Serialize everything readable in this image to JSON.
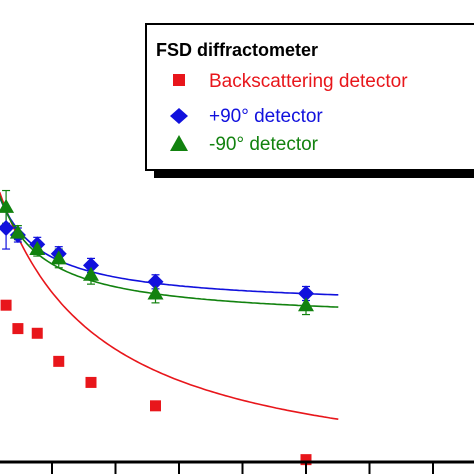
{
  "chart_data": {
    "type": "scatter",
    "legend": {
      "title": "FSD diffractometer",
      "placement": "top-right"
    },
    "x_range": [
      0,
      31
    ],
    "y_range": [
      0,
      19
    ],
    "series": [
      {
        "name": "Backscattering detector",
        "color": "#e8161b",
        "marker": "square",
        "points": [
          [
            0.1,
            12.0
          ],
          [
            1.2,
            11.0
          ],
          [
            3.0,
            10.8
          ],
          [
            5.0,
            9.6
          ],
          [
            8.0,
            8.7
          ],
          [
            14.0,
            7.7
          ],
          [
            28.0,
            5.4
          ]
        ],
        "fit": {
          "a": 4.2,
          "b": 12.0,
          "c": 10.0
        }
      },
      {
        "name": "+90° detector",
        "color": "#1111dd",
        "marker": "diamond",
        "points": [
          [
            0.1,
            15.3
          ],
          [
            1.2,
            15.0
          ],
          [
            3.0,
            14.6
          ],
          [
            5.0,
            14.2
          ],
          [
            8.0,
            13.7
          ],
          [
            14.0,
            13.0
          ],
          [
            28.0,
            12.5
          ]
        ],
        "errors": [
          0.9,
          0.3,
          0.3,
          0.3,
          0.3,
          0.3,
          0.3
        ],
        "fit": {
          "a": 11.9,
          "b": 4.2,
          "c": 4.6
        }
      },
      {
        "name": "-90° detector",
        "color": "#12820f",
        "marker": "triangle",
        "points": [
          [
            0.1,
            16.2
          ],
          [
            1.2,
            15.1
          ],
          [
            3.0,
            14.4
          ],
          [
            5.0,
            14.0
          ],
          [
            8.0,
            13.3
          ],
          [
            14.0,
            12.5
          ],
          [
            28.0,
            12.0
          ]
        ],
        "errors": [
          0.7,
          0.3,
          0.3,
          0.4,
          0.4,
          0.4,
          0.4
        ],
        "fit": {
          "a": 11.3,
          "b": 4.8,
          "c": 4.6
        }
      }
    ]
  }
}
